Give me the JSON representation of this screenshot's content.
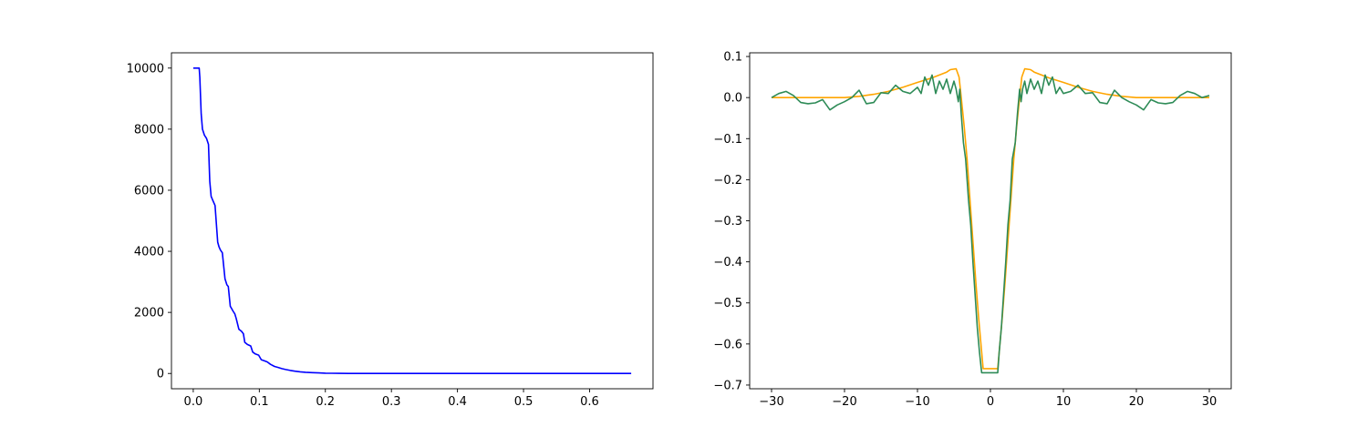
{
  "chart_data": [
    {
      "type": "line",
      "title": "",
      "xlabel": "",
      "ylabel": "",
      "xlim": [
        -0.033,
        0.696
      ],
      "ylim": [
        -500,
        10500
      ],
      "grid": false,
      "xticks": [
        0.0,
        0.1,
        0.2,
        0.3,
        0.4,
        0.5,
        0.6
      ],
      "xtick_labels": [
        "0.0",
        "0.1",
        "0.2",
        "0.3",
        "0.4",
        "0.5",
        "0.6"
      ],
      "yticks": [
        0,
        2000,
        4000,
        6000,
        8000,
        10000
      ],
      "ytick_labels": [
        "0",
        "2000",
        "4000",
        "6000",
        "8000",
        "10000"
      ],
      "series": [
        {
          "color": "#0000ff",
          "x": [
            0.0,
            0.009,
            0.01,
            0.012,
            0.014,
            0.017,
            0.02,
            0.023,
            0.025,
            0.027,
            0.03,
            0.033,
            0.037,
            0.039,
            0.041,
            0.044,
            0.048,
            0.051,
            0.053,
            0.056,
            0.06,
            0.063,
            0.065,
            0.069,
            0.073,
            0.076,
            0.078,
            0.082,
            0.087,
            0.09,
            0.094,
            0.099,
            0.103,
            0.107,
            0.112,
            0.117,
            0.123,
            0.128,
            0.134,
            0.14,
            0.147,
            0.154,
            0.162,
            0.17,
            0.18,
            0.19,
            0.2,
            0.21,
            0.22,
            0.24,
            0.26,
            0.3,
            0.4,
            0.5,
            0.6,
            0.663
          ],
          "y": [
            10000,
            10000,
            9700,
            8500,
            8000,
            7800,
            7700,
            7500,
            6300,
            5800,
            5650,
            5500,
            4300,
            4150,
            4050,
            3950,
            3100,
            2900,
            2850,
            2200,
            2050,
            1950,
            1800,
            1450,
            1380,
            1300,
            1020,
            950,
            900,
            700,
            640,
            600,
            450,
            420,
            380,
            300,
            230,
            200,
            160,
            130,
            100,
            75,
            55,
            40,
            28,
            18,
            10,
            6,
            4,
            2,
            1,
            0,
            0,
            0,
            0,
            0
          ]
        }
      ]
    },
    {
      "type": "line",
      "title": "",
      "xlabel": "",
      "ylabel": "",
      "xlim": [
        -33,
        33
      ],
      "ylim": [
        -0.709,
        0.109
      ],
      "grid": false,
      "xticks": [
        -30,
        -20,
        -10,
        0,
        10,
        20,
        30
      ],
      "xtick_labels": [
        "−30",
        "−20",
        "−10",
        "0",
        "10",
        "20",
        "30"
      ],
      "yticks": [
        0.1,
        0.0,
        -0.1,
        -0.2,
        -0.3,
        -0.4,
        -0.5,
        -0.6,
        -0.7
      ],
      "ytick_labels": [
        "0.1",
        "0.0",
        "−0.1",
        "−0.2",
        "−0.3",
        "−0.4",
        "−0.5",
        "−0.6",
        "−0.7"
      ],
      "series": [
        {
          "color": "#ffa500",
          "x": [
            -30,
            -20,
            -18,
            -16,
            -14,
            -12,
            -10,
            -8,
            -6,
            -5.5,
            -4.7,
            -4.3,
            -4,
            -3.6,
            -3.2,
            -2.8,
            -2.4,
            -2.0,
            -1.6,
            -1.2,
            -1.0,
            1.0,
            1.2,
            1.6,
            2.0,
            2.4,
            2.8,
            3.2,
            3.6,
            4.0,
            4.3,
            4.7,
            5.5,
            6,
            8,
            10,
            12,
            14,
            16,
            18,
            20,
            30
          ],
          "y": [
            0,
            0,
            0.003,
            0.008,
            0.015,
            0.025,
            0.037,
            0.048,
            0.062,
            0.068,
            0.07,
            0.05,
            0.0,
            -0.07,
            -0.15,
            -0.25,
            -0.35,
            -0.45,
            -0.54,
            -0.62,
            -0.66,
            -0.66,
            -0.62,
            -0.54,
            -0.45,
            -0.35,
            -0.25,
            -0.15,
            -0.07,
            0.0,
            0.05,
            0.07,
            0.068,
            0.062,
            0.048,
            0.037,
            0.025,
            0.015,
            0.008,
            0.003,
            0,
            0
          ]
        },
        {
          "color": "#2e8b57",
          "x": [
            -30,
            -29,
            -28,
            -27,
            -26,
            -25,
            -24,
            -23,
            -22,
            -21,
            -20,
            -19,
            -18,
            -17,
            -16,
            -15,
            -14,
            -13,
            -12,
            -11,
            -10,
            -9.5,
            -9,
            -8.5,
            -8,
            -7.5,
            -7,
            -6.5,
            -6,
            -5.5,
            -5,
            -4.7,
            -4.4,
            -4.2,
            -4.0,
            -3.7,
            -3.4,
            -3.0,
            -2.7,
            -2.4,
            -2.1,
            -1.8,
            -1.5,
            -1.2,
            -1.0,
            1.0,
            1.2,
            1.5,
            1.8,
            2.1,
            2.4,
            2.7,
            3.0,
            3.4,
            3.7,
            4.0,
            4.2,
            4.4,
            4.7,
            5,
            5.5,
            6,
            6.5,
            7,
            7.5,
            8,
            8.5,
            9,
            9.5,
            10,
            11,
            12,
            13,
            14,
            15,
            16,
            17,
            18,
            19,
            20,
            21,
            22,
            23,
            24,
            25,
            26,
            27,
            28,
            29,
            30
          ],
          "y": [
            0.0,
            0.01,
            0.015,
            0.005,
            -0.012,
            -0.015,
            -0.013,
            -0.005,
            -0.03,
            -0.018,
            -0.01,
            0.0,
            0.018,
            -0.015,
            -0.012,
            0.012,
            0.01,
            0.03,
            0.015,
            0.01,
            0.025,
            0.01,
            0.05,
            0.03,
            0.055,
            0.01,
            0.04,
            0.02,
            0.045,
            0.01,
            0.04,
            0.02,
            -0.01,
            0.02,
            -0.04,
            -0.11,
            -0.15,
            -0.25,
            -0.31,
            -0.4,
            -0.48,
            -0.56,
            -0.62,
            -0.67,
            -0.67,
            -0.67,
            -0.62,
            -0.56,
            -0.48,
            -0.4,
            -0.31,
            -0.25,
            -0.15,
            -0.11,
            -0.04,
            0.02,
            -0.01,
            0.02,
            0.04,
            0.01,
            0.045,
            0.02,
            0.04,
            0.01,
            0.055,
            0.03,
            0.05,
            0.01,
            0.025,
            0.01,
            0.015,
            0.03,
            0.01,
            0.012,
            -0.012,
            -0.015,
            0.018,
            0.0,
            -0.01,
            -0.018,
            -0.03,
            -0.005,
            -0.013,
            -0.015,
            -0.012,
            0.005,
            0.015,
            0.01,
            0.0,
            0.005
          ]
        }
      ]
    }
  ]
}
